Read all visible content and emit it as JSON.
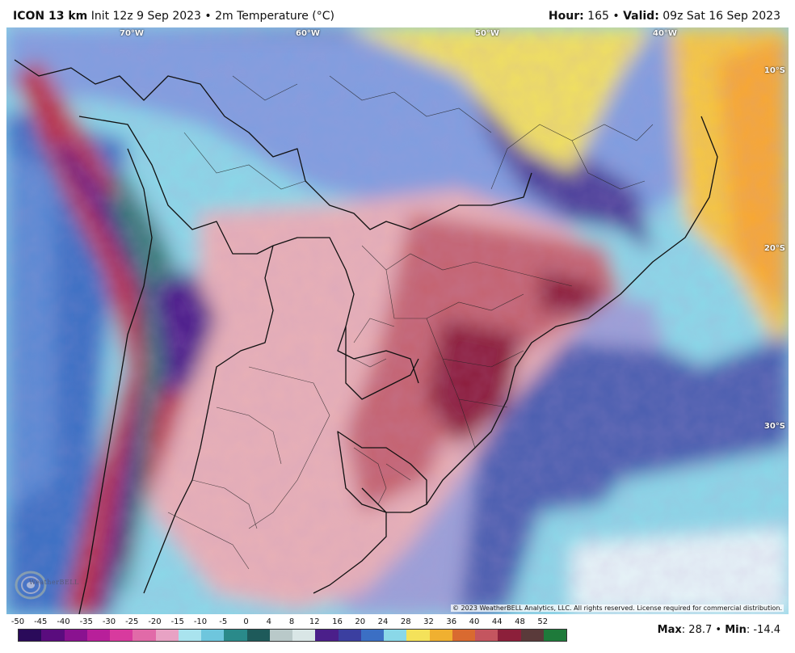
{
  "header": {
    "model": "ICON 13 km",
    "init": "Init 12z 9 Sep 2023",
    "sep": "•",
    "field": "2m Temperature (°C)",
    "hour_label": "Hour:",
    "hour_value": "165",
    "valid_label": "Valid:",
    "valid_value": "09z Sat 16 Sep 2023"
  },
  "map": {
    "lon_labels": [
      "70°W",
      "60°W",
      "50°W",
      "40°W"
    ],
    "lat_labels": [
      "10°S",
      "20°S",
      "30°S"
    ],
    "copyright": "© 2023 WeatherBELL Analytics, LLC. All rights reserved. License required for commercial distribution.",
    "logo_text": "WeatherBELL",
    "colors": {
      "ocean_cold": "#6ec6dd",
      "ocean_cool": "#a9e3ee",
      "warm_land": "#e3a7ae",
      "hot_land": "#c4555f",
      "very_hot": "#8c1f3a",
      "purple_high": "#4b1f8a",
      "tropical_yellow": "#f4e25a",
      "blue_mid": "#3b6fc4"
    }
  },
  "colorbar": {
    "ticks": [
      "-50",
      "-45",
      "-40",
      "-35",
      "-30",
      "-25",
      "-20",
      "-15",
      "-10",
      "-5",
      "0",
      "4",
      "8",
      "12",
      "16",
      "20",
      "24",
      "28",
      "32",
      "36",
      "40",
      "44",
      "48",
      "52"
    ],
    "colors": [
      "#2a0a5a",
      "#5a0c7e",
      "#8a1290",
      "#b81f9a",
      "#d83a9e",
      "#e16aa8",
      "#e8a2c4",
      "#a9e3ee",
      "#6ec6dd",
      "#2a8a8a",
      "#1e5a5a",
      "#b9c9c9",
      "#d9e6e6",
      "#4b1f8a",
      "#3b3fa0",
      "#3b6fc4",
      "#8ad8e8",
      "#f4e25a",
      "#f0b030",
      "#d96a30",
      "#c4555f",
      "#8c1f3a",
      "#5a3a3a",
      "#1e7a3a"
    ]
  },
  "stats": {
    "max_label": "Max",
    "max_value": "28.7",
    "min_label": "Min",
    "min_value": "-14.4"
  }
}
